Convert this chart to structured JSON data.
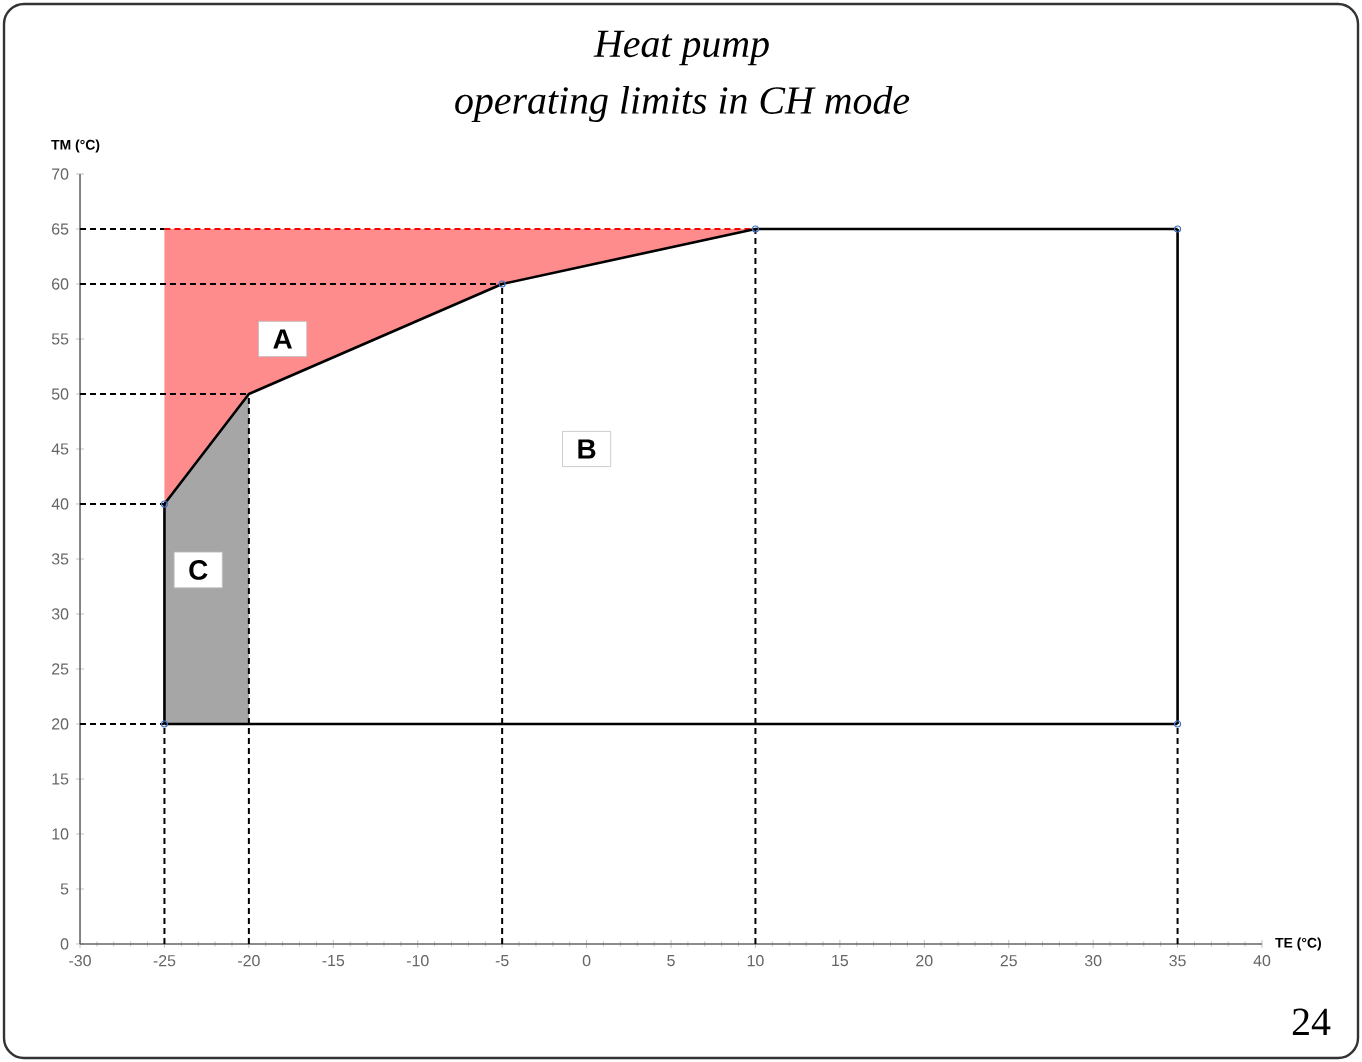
{
  "chart_data": {
    "type": "line",
    "title": "Heat pump",
    "subtitle": "operating limits in CH mode",
    "xlabel": "TE (°C)",
    "ylabel": "TM (°C)",
    "xlim": [
      -30,
      40
    ],
    "xticks": [
      -30,
      -25,
      -20,
      -15,
      -10,
      -5,
      0,
      5,
      10,
      15,
      20,
      25,
      30,
      35,
      40
    ],
    "ylim": [
      0,
      70
    ],
    "yticks": [
      0,
      5,
      10,
      15,
      20,
      25,
      30,
      35,
      40,
      45,
      50,
      55,
      60,
      65,
      70
    ],
    "grid": false,
    "series": [
      {
        "type": "line",
        "color": "#ff0000",
        "line_style": "dashed",
        "x": [
          -25,
          -20,
          -5,
          10
        ],
        "lower": [
          40,
          50,
          60,
          65
        ],
        "upper": [
          65,
          65,
          65,
          65
        ],
        "values": [
          65,
          65,
          65,
          65
        ]
      },
      {
        "type": "line",
        "color": "#a6a6a6",
        "line_style": "solid",
        "x": [
          -25,
          -20
        ],
        "lower": [
          20,
          20
        ],
        "upper": [
          40,
          50
        ],
        "values": [
          40,
          50
        ]
      },
      {
        "type": "line",
        "color": "#000000",
        "line_style": "dashed",
        "x": [
          -30,
          -25
        ],
        "values": [
          65,
          65
        ]
      },
      {
        "type": "line",
        "color": "#000000",
        "line_style": "dashed",
        "x": [
          -30,
          -5
        ],
        "values": [
          60,
          60
        ]
      },
      {
        "type": "line",
        "color": "#000000",
        "line_style": "dashed",
        "x": [
          -30,
          -20
        ],
        "values": [
          50,
          50
        ]
      },
      {
        "type": "line",
        "color": "#000000",
        "line_style": "dashed",
        "x": [
          -30,
          -25
        ],
        "values": [
          40,
          40
        ]
      },
      {
        "type": "line",
        "color": "#000000",
        "line_style": "dashed",
        "x": [
          -30,
          -25
        ],
        "values": [
          20,
          20
        ]
      },
      {
        "type": "line",
        "color": "#000000",
        "line_style": "dashed",
        "x": [
          -25,
          -25
        ],
        "values": [
          0,
          20
        ]
      },
      {
        "type": "line",
        "color": "#000000",
        "line_style": "dashed",
        "x": [
          -20,
          -20
        ],
        "values": [
          0,
          50
        ]
      },
      {
        "type": "line",
        "color": "#000000",
        "line_style": "dashed",
        "x": [
          -5,
          -5
        ],
        "values": [
          0,
          60
        ]
      },
      {
        "type": "line",
        "color": "#000000",
        "line_style": "dashed",
        "x": [
          10,
          10
        ],
        "values": [
          0,
          65
        ]
      },
      {
        "type": "line",
        "color": "#000000",
        "line_style": "dashed",
        "x": [
          35,
          35
        ],
        "values": [
          0,
          20
        ]
      },
      {
        "color": "#000000",
        "line_style": "solid",
        "x": [
          -25,
          -25
        ],
        "values": [
          20,
          40
        ]
      },
      {
        "color": "#000000",
        "line_style": "solid",
        "x": [
          -25,
          -20,
          -5,
          10,
          35
        ],
        "values": [
          40,
          50,
          60,
          65,
          65
        ]
      },
      {
        "color": "#000000",
        "line_style": "solid",
        "x": [
          35,
          35
        ],
        "values": [
          65,
          20
        ]
      },
      {
        "color": "#000000",
        "line_style": "solid",
        "x": [
          -25,
          35
        ],
        "values": [
          20,
          20
        ]
      },
      {
        "type": "scatter",
        "color": "#4472c4",
        "marker": "circle",
        "x": [
          -25,
          -25,
          -5,
          10,
          35,
          35
        ],
        "values": [
          20,
          40,
          60,
          65,
          65,
          20
        ]
      }
    ],
    "annotations": [
      {
        "text": "A",
        "x": -18,
        "y": 55
      },
      {
        "text": "B",
        "x": 0,
        "y": 45
      },
      {
        "text": "C",
        "x": -23,
        "y": 34
      },
      "24"
    ]
  }
}
